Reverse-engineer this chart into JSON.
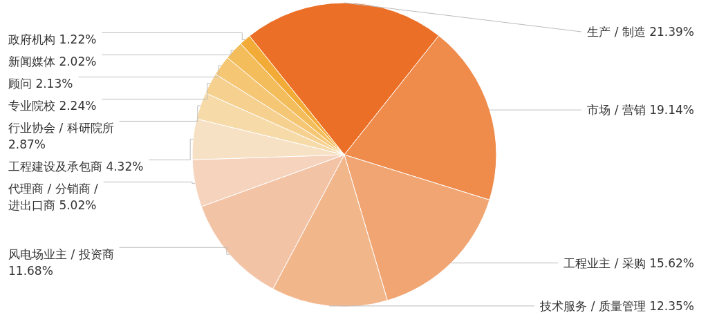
{
  "chart_data": {
    "type": "pie",
    "categories": [
      "生产 / 制造",
      "市场 / 营销",
      "工程业主 / 采购",
      "技术服务 / 质量管理",
      "风电场业主 / 投资商",
      "代理商 / 分销商 / 进出口商",
      "工程建设及承包商",
      "行业协会 / 科研院所",
      "专业院校",
      "顾问",
      "新闻媒体",
      "政府机构"
    ],
    "values": [
      21.39,
      19.14,
      15.62,
      12.35,
      11.68,
      5.02,
      4.32,
      2.87,
      2.24,
      2.13,
      2.02,
      1.22
    ],
    "colors": [
      "#ec6f27",
      "#ef8b4b",
      "#f0a572",
      "#f2b68b",
      "#f3c3a6",
      "#f6d3bd",
      "#f7e1c4",
      "#f6dba9",
      "#f6d08f",
      "#f5c673",
      "#f4bd5c",
      "#f3ab38"
    ],
    "value_labels": [
      "21.39%",
      "19.14%",
      "15.62%",
      "12.35%",
      "11.68%",
      "5.02%",
      "4.32%",
      "2.87%",
      "2.24%",
      "2.13%",
      "2.02%",
      "1.22%"
    ]
  }
}
